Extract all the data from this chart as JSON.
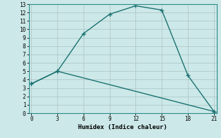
{
  "xlabel": "Humidex (Indice chaleur)",
  "background_color": "#cce8e8",
  "grid_color": "#b0c8c8",
  "line_color": "#1a7070",
  "line1_x": [
    0,
    3,
    6,
    9,
    12,
    15,
    18,
    21
  ],
  "line1_y": [
    3.5,
    5.0,
    9.5,
    11.8,
    12.8,
    12.3,
    4.5,
    0.2
  ],
  "line2_x": [
    0,
    3,
    21
  ],
  "line2_y": [
    3.5,
    5.0,
    0.2
  ],
  "xlim": [
    -0.3,
    21.3
  ],
  "ylim": [
    0,
    13
  ],
  "xticks": [
    0,
    3,
    6,
    9,
    12,
    15,
    18,
    21
  ],
  "yticks": [
    0,
    1,
    2,
    3,
    4,
    5,
    6,
    7,
    8,
    9,
    10,
    11,
    12,
    13
  ],
  "markersize": 3.0,
  "linewidth": 1.0,
  "tick_labelsize": 5.5,
  "xlabel_fontsize": 6.5
}
